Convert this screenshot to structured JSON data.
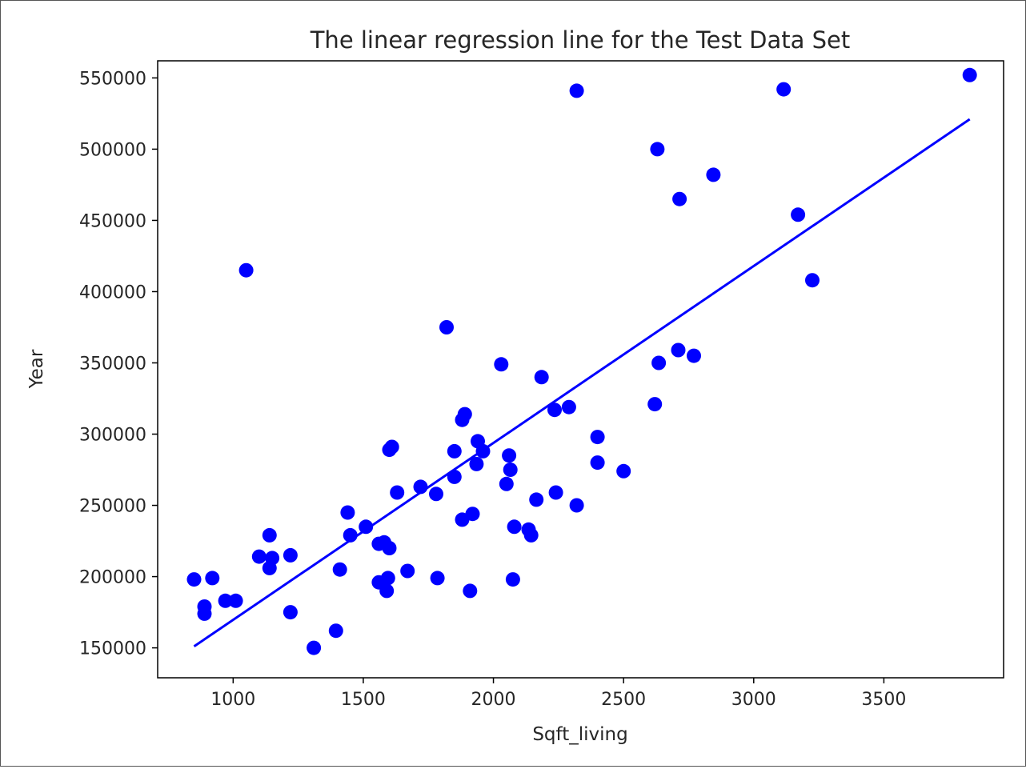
{
  "chart_data": {
    "type": "scatter",
    "title": "The linear regression line for the Test Data Set",
    "xlabel": "Sqft_living",
    "ylabel": "Year",
    "xlim": [
      710,
      3960
    ],
    "ylim": [
      129000,
      562000
    ],
    "x_ticks": [
      1000,
      1500,
      2000,
      2500,
      3000,
      3500
    ],
    "y_ticks": [
      150000,
      200000,
      250000,
      300000,
      350000,
      400000,
      450000,
      500000,
      550000
    ],
    "grid": false,
    "series": [
      {
        "type": "scatter",
        "color": "#0000ff",
        "points": [
          [
            850,
            198000
          ],
          [
            890,
            179000
          ],
          [
            890,
            174000
          ],
          [
            920,
            199000
          ],
          [
            970,
            183000
          ],
          [
            1010,
            183000
          ],
          [
            1050,
            415000
          ],
          [
            1100,
            214000
          ],
          [
            1140,
            229000
          ],
          [
            1140,
            206000
          ],
          [
            1150,
            213000
          ],
          [
            1220,
            175000
          ],
          [
            1220,
            215000
          ],
          [
            1310,
            150000
          ],
          [
            1395,
            162000
          ],
          [
            1410,
            205000
          ],
          [
            1440,
            245000
          ],
          [
            1450,
            229000
          ],
          [
            1510,
            235000
          ],
          [
            1560,
            223000
          ],
          [
            1560,
            196000
          ],
          [
            1580,
            224000
          ],
          [
            1590,
            190000
          ],
          [
            1595,
            199000
          ],
          [
            1600,
            220000
          ],
          [
            1600,
            289000
          ],
          [
            1610,
            291000
          ],
          [
            1630,
            259000
          ],
          [
            1670,
            204000
          ],
          [
            1720,
            263000
          ],
          [
            1780,
            258000
          ],
          [
            1785,
            199000
          ],
          [
            1820,
            375000
          ],
          [
            1850,
            270000
          ],
          [
            1850,
            288000
          ],
          [
            1880,
            240000
          ],
          [
            1880,
            310000
          ],
          [
            1890,
            314000
          ],
          [
            1910,
            190000
          ],
          [
            1920,
            244000
          ],
          [
            1935,
            279000
          ],
          [
            1940,
            295000
          ],
          [
            1960,
            288000
          ],
          [
            2030,
            349000
          ],
          [
            2050,
            265000
          ],
          [
            2060,
            285000
          ],
          [
            2065,
            275000
          ],
          [
            2075,
            198000
          ],
          [
            2080,
            235000
          ],
          [
            2135,
            233000
          ],
          [
            2145,
            229000
          ],
          [
            2165,
            254000
          ],
          [
            2185,
            340000
          ],
          [
            2235,
            317000
          ],
          [
            2240,
            259000
          ],
          [
            2290,
            319000
          ],
          [
            2320,
            541000
          ],
          [
            2320,
            250000
          ],
          [
            2400,
            298000
          ],
          [
            2400,
            280000
          ],
          [
            2500,
            274000
          ],
          [
            2620,
            321000
          ],
          [
            2630,
            500000
          ],
          [
            2635,
            350000
          ],
          [
            2710,
            359000
          ],
          [
            2715,
            465000
          ],
          [
            2770,
            355000
          ],
          [
            2845,
            482000
          ],
          [
            3115,
            542000
          ],
          [
            3170,
            454000
          ],
          [
            3225,
            408000
          ],
          [
            3830,
            552000
          ]
        ]
      },
      {
        "type": "line",
        "color": "#0000ff",
        "points": [
          [
            850,
            151000
          ],
          [
            3830,
            521000
          ]
        ]
      }
    ]
  }
}
